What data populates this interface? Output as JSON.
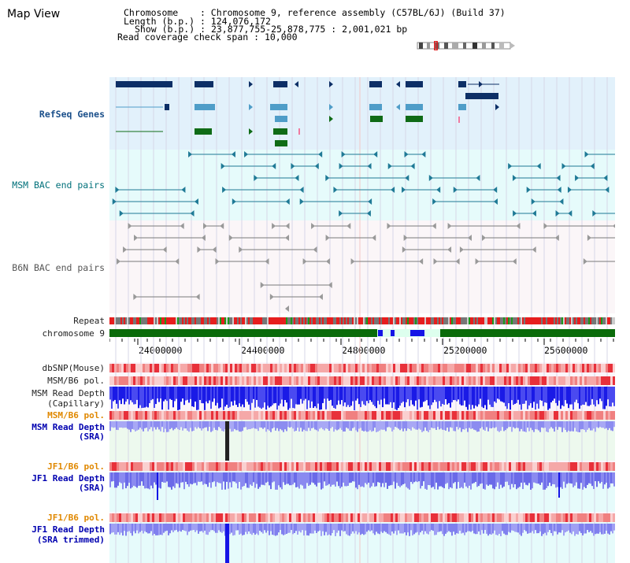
{
  "title": "Map View",
  "info": {
    "chromosome_label": "Chromosome",
    "chromosome_value": "Chromosome 9, reference assembly (C57BL/6J) (Build 37)",
    "length_label": "Length (b.p.)",
    "length_value": "124,076,172",
    "show_label": "Show (b.p.)",
    "show_value": "23,877,755-25,878,775 : 2,001,021 bp",
    "coverage_label": "Read coverage check span",
    "coverage_value": "10,000"
  },
  "tracks": {
    "refseq": "RefSeq Genes",
    "msm_bac": "MSM BAC end pairs",
    "b6n_bac": "B6N BAC end pairs",
    "repeat": "Repeat",
    "chromosome": "chromosome 9",
    "dbsnp": "dbSNP(Mouse)",
    "msm_b6_pol_1": "MSM/B6 pol.",
    "msm_read_depth_cap_1": "MSM Read Depth",
    "msm_read_depth_cap_2": "(Capillary)",
    "msm_b6_pol_2": "MSM/B6 pol.",
    "msm_read_depth_sra_1": "MSM Read Depth",
    "msm_read_depth_sra_2": "(SRA)",
    "jf1_b6_pol_1": "JF1/B6 pol.",
    "jf1_read_depth_sra_1": "JF1 Read Depth",
    "jf1_read_depth_sra_2": "(SRA)",
    "jf1_b6_pol_2": "JF1/B6 pol.",
    "jf1_read_depth_trim_1": "JF1 Read Depth",
    "jf1_read_depth_trim_2": "(SRA trimmed)"
  },
  "axis_ticks": [
    "24000000",
    "24400000",
    "24800000",
    "25200000",
    "25600000"
  ],
  "colors": {
    "refseq_bg": "#e2f1fb",
    "msm_bac_bg": "#e6fbfb",
    "b6n_bac_bg": "#fbf6f8",
    "gene_dark": "#0d2f66",
    "gene_mid": "#4f9dc8",
    "gene_green": "#0f6b16",
    "chromosome_green": "#0a6b0a",
    "depth_blue": "#1414e6",
    "depth_light": "#8c8cf0",
    "pol_red": "#e8303a",
    "jf1_label_orange": "#e08800"
  }
}
